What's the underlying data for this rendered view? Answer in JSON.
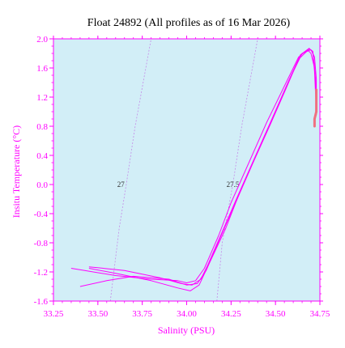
{
  "chart_data": {
    "type": "line",
    "title": "Float 24892  (All profiles as of 16 Mar 2026)",
    "xlabel": "Salinity (PSU)",
    "ylabel": "Insitu Temperature (°C)",
    "xlim": [
      33.25,
      34.75
    ],
    "ylim": [
      -1.6,
      2.0
    ],
    "x_ticks": [
      "33.25",
      "33.50",
      "33.75",
      "34.00",
      "34.25",
      "34.50",
      "34.75"
    ],
    "y_ticks": [
      "-1.6",
      "-1.2",
      "-0.8",
      "-0.4",
      "0.0",
      "0.4",
      "0.8",
      "1.2",
      "1.6",
      "2.0"
    ],
    "grid": false,
    "colors": {
      "profile": "#ff00ff",
      "recent": "#f07080",
      "plot_bg": "#d2eef7",
      "axis": "#ff00ff",
      "isopycnal": "#c48ae8"
    },
    "isopycnals": [
      {
        "label": "27",
        "points": [
          [
            33.57,
            -1.6
          ],
          [
            33.62,
            -0.6
          ],
          [
            33.66,
            0.0
          ],
          [
            33.71,
            0.8
          ],
          [
            33.8,
            2.0
          ]
        ]
      },
      {
        "label": "27.5",
        "points": [
          [
            34.17,
            -1.6
          ],
          [
            34.2,
            -0.8
          ],
          [
            34.26,
            0.0
          ],
          [
            34.31,
            0.8
          ],
          [
            34.4,
            2.0
          ]
        ]
      }
    ],
    "isopycnal_label_pos": [
      [
        33.63,
        0.0
      ],
      [
        34.26,
        0.0
      ]
    ],
    "series": [
      {
        "x": [
          33.35,
          33.6,
          33.8,
          33.95,
          34.0,
          34.05,
          34.1,
          34.18,
          34.25,
          34.35,
          34.45,
          34.55,
          34.63,
          34.68,
          34.7,
          34.72,
          34.73
        ],
        "y": [
          -1.15,
          -1.25,
          -1.3,
          -1.32,
          -1.35,
          -1.32,
          -1.15,
          -0.7,
          -0.25,
          0.3,
          0.85,
          1.35,
          1.75,
          1.85,
          1.8,
          1.6,
          1.3
        ]
      },
      {
        "x": [
          33.45,
          33.65,
          33.85,
          33.97,
          34.03,
          34.08,
          34.12,
          34.2,
          34.28,
          34.38,
          34.48,
          34.57,
          34.64,
          34.69,
          34.71,
          34.72,
          34.73
        ],
        "y": [
          -1.13,
          -1.18,
          -1.28,
          -1.36,
          -1.38,
          -1.3,
          -1.1,
          -0.65,
          -0.2,
          0.35,
          0.9,
          1.4,
          1.78,
          1.87,
          1.82,
          1.55,
          1.0
        ]
      },
      {
        "x": [
          33.45,
          33.6,
          33.8,
          33.95,
          34.02,
          34.07,
          34.12,
          34.22,
          34.3,
          34.4,
          34.5,
          34.58,
          34.65,
          34.7,
          34.72,
          34.73,
          34.73
        ],
        "y": [
          -1.15,
          -1.22,
          -1.32,
          -1.42,
          -1.46,
          -1.38,
          -1.12,
          -0.6,
          -0.1,
          0.45,
          1.0,
          1.45,
          1.8,
          1.85,
          1.75,
          1.45,
          0.95
        ]
      },
      {
        "x": [
          33.4,
          33.55,
          33.7,
          33.9,
          34.0,
          34.06,
          34.11,
          34.19,
          34.27,
          34.37,
          34.47,
          34.56,
          34.63,
          34.69,
          34.71,
          34.72,
          34.73
        ],
        "y": [
          -1.4,
          -1.32,
          -1.26,
          -1.3,
          -1.38,
          -1.36,
          -1.18,
          -0.72,
          -0.28,
          0.28,
          0.82,
          1.32,
          1.72,
          1.86,
          1.83,
          1.62,
          1.2
        ]
      }
    ],
    "recent_profile": {
      "x": [
        34.72,
        34.72,
        34.73,
        34.73,
        34.73,
        34.73
      ],
      "y": [
        0.8,
        0.9,
        1.0,
        1.1,
        1.2,
        1.3
      ]
    }
  }
}
